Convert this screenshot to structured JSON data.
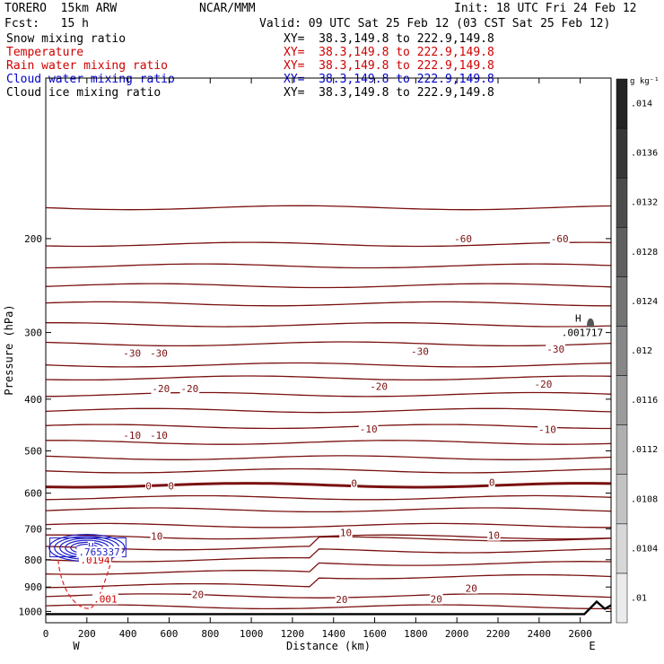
{
  "header": {
    "model": "TORERO  15km ARW",
    "center": "NCAR/MMM",
    "init": "Init: 18 UTC Fri 24 Feb 12",
    "forecast": "Fcst:   15 h",
    "valid": "Valid: 09 UTC Sat 25 Feb 12 (03 CST Sat 25 Feb 12)",
    "fields": [
      {
        "name": "Snow mixing ratio",
        "xy": "XY=  38.3,149.8 to 222.9,149.8",
        "color": "#000000"
      },
      {
        "name": "Temperature",
        "xy": "XY=  38.3,149.8 to 222.9,149.8",
        "color": "#d00000"
      },
      {
        "name": "Rain water mixing ratio",
        "xy": "XY=  38.3,149.8 to 222.9,149.8",
        "color": "#d00000"
      },
      {
        "name": "Cloud water mixing ratio",
        "xy": "XY=  38.3,149.8 to 222.9,149.8",
        "color": "#0000cc"
      },
      {
        "name": "Cloud ice mixing ratio",
        "xy": "XY=  38.3,149.8 to 222.9,149.8",
        "color": "#000000"
      }
    ]
  },
  "chart_data": {
    "type": "contour",
    "xlabel": "Distance (km)",
    "ylabel": "Pressure (hPa)",
    "xlim": [
      0,
      2750
    ],
    "ylim": [
      1050,
      100
    ],
    "y_log": true,
    "x_ticks": [
      0,
      200,
      400,
      600,
      800,
      1000,
      1200,
      1400,
      1600,
      1800,
      2000,
      2200,
      2400,
      2600
    ],
    "y_ticks": [
      200,
      300,
      400,
      500,
      600,
      700,
      800,
      900,
      1000
    ],
    "x_end_labels": {
      "left": "W",
      "right": "E"
    },
    "colorbar": {
      "unit": "g kg⁻¹",
      "ticks": [
        ".01",
        ".0104",
        ".0108",
        ".0112",
        ".0116",
        ".012",
        ".0124",
        ".0128",
        ".0132",
        ".0136",
        ".014"
      ]
    },
    "temperature_labels": [
      {
        "text": "-60",
        "x": 2030,
        "p": 200
      },
      {
        "text": "-60",
        "x": 2500,
        "p": 200
      },
      {
        "text": "-30",
        "x": 420,
        "p": 328
      },
      {
        "text": "-30",
        "x": 550,
        "p": 328
      },
      {
        "text": "-30",
        "x": 1820,
        "p": 325
      },
      {
        "text": "-30",
        "x": 2480,
        "p": 322
      },
      {
        "text": "-20",
        "x": 560,
        "p": 382
      },
      {
        "text": "-20",
        "x": 700,
        "p": 382
      },
      {
        "text": "-20",
        "x": 1620,
        "p": 378
      },
      {
        "text": "-20",
        "x": 2420,
        "p": 375
      },
      {
        "text": "-10",
        "x": 420,
        "p": 467
      },
      {
        "text": "-10",
        "x": 550,
        "p": 467
      },
      {
        "text": "-10",
        "x": 1570,
        "p": 455
      },
      {
        "text": "-10",
        "x": 2440,
        "p": 456
      },
      {
        "text": "0",
        "x": 500,
        "p": 582
      },
      {
        "text": "0",
        "x": 610,
        "p": 582
      },
      {
        "text": "0",
        "x": 1500,
        "p": 575
      },
      {
        "text": "0",
        "x": 2170,
        "p": 573
      },
      {
        "text": "10",
        "x": 540,
        "p": 722
      },
      {
        "text": "10",
        "x": 1460,
        "p": 711
      },
      {
        "text": "10",
        "x": 2180,
        "p": 720
      },
      {
        "text": "20",
        "x": 740,
        "p": 930
      },
      {
        "text": "20",
        "x": 1440,
        "p": 950
      },
      {
        "text": "20",
        "x": 1900,
        "p": 948
      },
      {
        "text": "20",
        "x": 2070,
        "p": 905
      }
    ],
    "rain_labels": [
      {
        "text": ".0194",
        "x": 240,
        "p": 800
      },
      {
        "text": ".001",
        "x": 290,
        "p": 948
      }
    ],
    "cloud_water_labels": [
      {
        "text": "H",
        "x": 220,
        "p": 755
      },
      {
        "text": ".765337",
        "x": 260,
        "p": 773
      }
    ],
    "cloud_ice_labels": [
      {
        "text": "H",
        "x": 2590,
        "p": 282
      },
      {
        "text": ".001717",
        "x": 2610,
        "p": 300
      }
    ],
    "terrain_surface_p": 1012
  }
}
